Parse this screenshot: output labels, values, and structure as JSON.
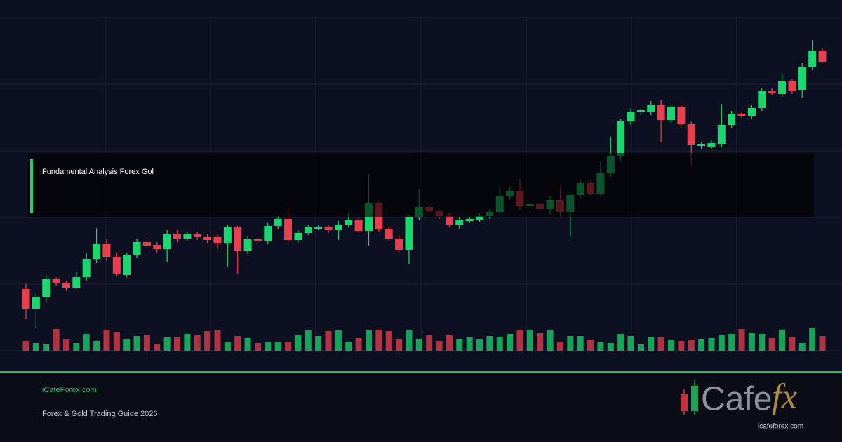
{
  "chart_data": {
    "type": "candlestick",
    "open": [
      88,
      60,
      77,
      102,
      97,
      90,
      105,
      131,
      152,
      134,
      108,
      137,
      155,
      151,
      145,
      167,
      160,
      166,
      162,
      162,
      153,
      176,
      142,
      159,
      156,
      178,
      188,
      158,
      168,
      174,
      177,
      172,
      180,
      187,
      171,
      210,
      174,
      160,
      144,
      190,
      205,
      199,
      192,
      180,
      185,
      187,
      192,
      198,
      220,
      228,
      206,
      209,
      202,
      215,
      198,
      222,
      239,
      224,
      253,
      278,
      327,
      340,
      340,
      350,
      329,
      348,
      323,
      292,
      291,
      295,
      322,
      338,
      335,
      346,
      371,
      366,
      384,
      372,
      405,
      428
    ],
    "high": [
      95,
      82,
      110,
      105,
      100,
      112,
      140,
      175,
      160,
      140,
      140,
      160,
      158,
      155,
      172,
      172,
      170,
      170,
      166,
      166,
      180,
      178,
      164,
      162,
      182,
      192,
      207,
      172,
      180,
      180,
      180,
      185,
      198,
      190,
      252,
      214,
      178,
      165,
      194,
      230,
      208,
      202,
      196,
      190,
      191,
      196,
      202,
      235,
      234,
      245,
      212,
      212,
      220,
      235,
      226,
      244,
      244,
      270,
      305,
      330,
      344,
      346,
      356,
      358,
      350,
      350,
      327,
      298,
      300,
      352,
      342,
      341,
      350,
      374,
      374,
      395,
      388,
      410,
      443,
      432
    ],
    "low": [
      45,
      33,
      70,
      92,
      85,
      88,
      100,
      125,
      128,
      106,
      105,
      132,
      146,
      140,
      127,
      155,
      156,
      158,
      153,
      145,
      120,
      110,
      138,
      153,
      152,
      174,
      155,
      154,
      165,
      172,
      168,
      158,
      176,
      168,
      150,
      170,
      156,
      140,
      124,
      186,
      196,
      188,
      176,
      174,
      182,
      184,
      188,
      194,
      216,
      200,
      202,
      198,
      195,
      190,
      163,
      218,
      220,
      220,
      248,
      270,
      322,
      337,
      336,
      297,
      325,
      320,
      265,
      288,
      288,
      290,
      318,
      332,
      330,
      342,
      364,
      362,
      366,
      361,
      400,
      410
    ],
    "close": [
      60,
      77,
      102,
      96,
      90,
      105,
      131,
      152,
      134,
      110,
      137,
      155,
      150,
      145,
      167,
      160,
      166,
      162,
      158,
      153,
      176,
      142,
      159,
      156,
      178,
      188,
      158,
      168,
      176,
      177,
      172,
      180,
      187,
      171,
      210,
      173,
      160,
      144,
      190,
      205,
      199,
      192,
      180,
      187,
      188,
      192,
      198,
      220,
      228,
      207,
      209,
      202,
      215,
      198,
      222,
      239,
      224,
      253,
      278,
      327,
      341,
      343,
      350,
      329,
      348,
      323,
      294,
      295,
      296,
      322,
      338,
      335,
      346,
      371,
      367,
      384,
      370,
      405,
      428,
      412
    ],
    "volume": [
      14,
      11,
      9,
      31,
      17,
      11,
      24,
      14,
      30,
      27,
      17,
      21,
      23,
      10,
      19,
      19,
      24,
      23,
      28,
      29,
      12,
      21,
      18,
      11,
      12,
      13,
      12,
      22,
      29,
      21,
      28,
      29,
      13,
      18,
      29,
      30,
      28,
      17,
      29,
      17,
      22,
      14,
      22,
      17,
      19,
      17,
      21,
      20,
      24,
      30,
      30,
      25,
      29,
      12,
      21,
      21,
      16,
      12,
      11,
      24,
      21,
      9,
      20,
      19,
      16,
      14,
      16,
      17,
      18,
      22,
      24,
      31,
      26,
      24,
      18,
      30,
      20,
      11,
      32,
      21
    ],
    "colors": {
      "up": "#1ed46e",
      "down": "#e6404f"
    },
    "ylim": [
      0,
      475
    ],
    "yticks": [
      0,
      95,
      190,
      285,
      380,
      475
    ],
    "grid": true
  },
  "overlay": {
    "title": "Fundamental Analysis Forex Gol"
  },
  "footer": {
    "site": "iCafeForex.com",
    "subtitle": "Forex & Gold Trading Guide 2026"
  },
  "logo": {
    "word": "Cafe",
    "accent": "fx",
    "url": "icafeforex.com"
  }
}
